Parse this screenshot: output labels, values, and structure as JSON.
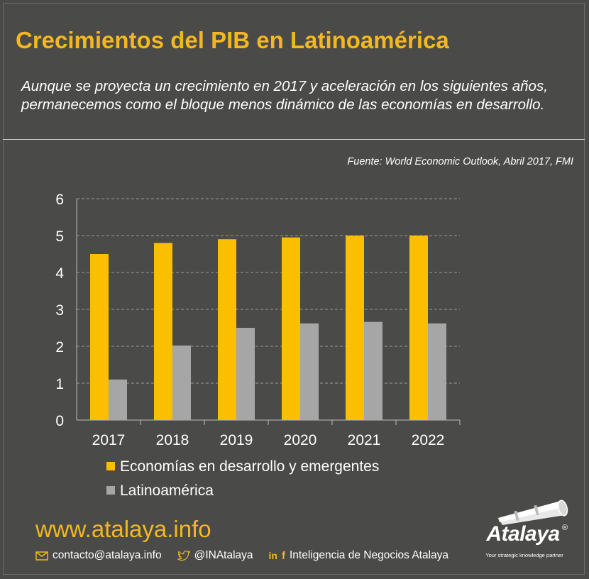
{
  "header": {
    "title": "Crecimientos del PIB en Latinoamérica",
    "subtitle": "Aunque se proyecta un crecimiento en 2017 y aceleración en los siguientes años, permanecemos como el bloque menos dinámico de las economías en desarrollo.",
    "source": "Fuente: World Economic Outlook, Abril 2017, FMI"
  },
  "colors": {
    "accent": "#f3b81f",
    "bar_primary": "#fbbf00",
    "bar_secondary": "#a6a6a6",
    "background": "#4a4a48"
  },
  "chart_data": {
    "type": "bar",
    "categories": [
      "2017",
      "2018",
      "2019",
      "2020",
      "2021",
      "2022"
    ],
    "series": [
      {
        "name": "Economías en desarrollo y emergentes",
        "values": [
          4.5,
          4.8,
          4.9,
          4.95,
          5.0,
          5.0
        ]
      },
      {
        "name": "Latinoamérica",
        "values": [
          1.1,
          2.02,
          2.5,
          2.62,
          2.66,
          2.62
        ]
      }
    ],
    "yticks": [
      "0",
      "1",
      "2",
      "3",
      "4",
      "5",
      "6"
    ],
    "ylim": [
      0,
      6
    ],
    "grid": true,
    "legend": "bottom"
  },
  "footer": {
    "url": "www.atalaya.info",
    "email": "contacto@atalaya.info",
    "twitter": "@INAtalaya",
    "social_name": "Inteligencia de Negocios Atalaya",
    "icons": [
      "mail-icon",
      "twitter-icon",
      "linkedin-icon",
      "facebook-icon"
    ]
  },
  "logo": {
    "name": "Atalaya",
    "registered": "®",
    "tagline": "Your strategic knowledge partner"
  }
}
